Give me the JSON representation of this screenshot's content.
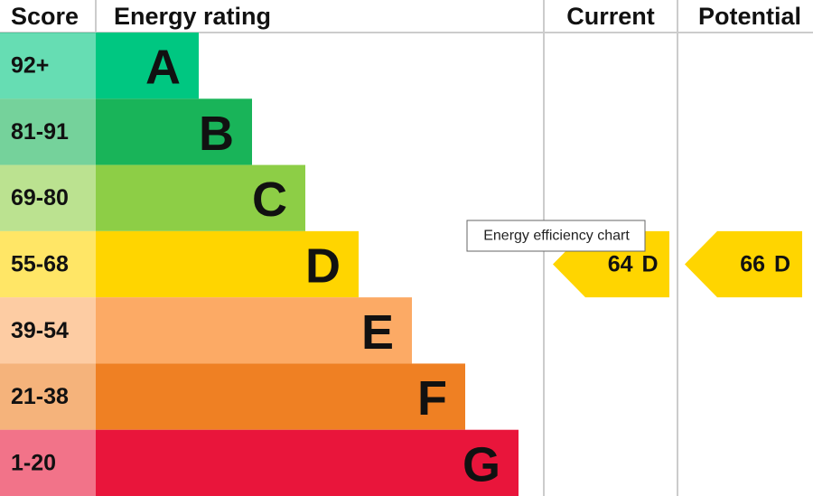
{
  "chart_data": {
    "type": "epc",
    "headers": {
      "score": "Score",
      "rating": "Energy rating",
      "current": "Current",
      "potential": "Potential"
    },
    "bands": [
      {
        "score": "92+",
        "letter": "A",
        "color": "#00c781"
      },
      {
        "score": "81-91",
        "letter": "B",
        "color": "#19b459"
      },
      {
        "score": "69-80",
        "letter": "C",
        "color": "#8dce46"
      },
      {
        "score": "55-68",
        "letter": "D",
        "color": "#ffd500"
      },
      {
        "score": "39-54",
        "letter": "E",
        "color": "#fcaa65"
      },
      {
        "score": "21-38",
        "letter": "F",
        "color": "#ef8023"
      },
      {
        "score": "1-20",
        "letter": "G",
        "color": "#e9153b"
      }
    ],
    "current": {
      "value": 64,
      "letter": "D"
    },
    "potential": {
      "value": 66,
      "letter": "D"
    },
    "tooltip": "Energy efficiency chart"
  }
}
